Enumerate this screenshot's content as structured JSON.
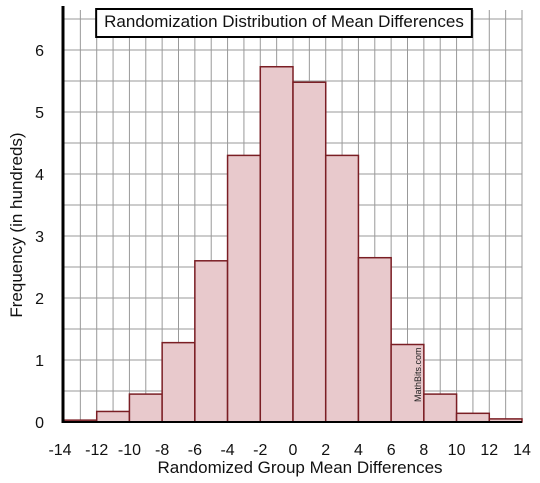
{
  "chart_data": {
    "type": "bar",
    "title": "Randomization Distribution of Mean Differences",
    "xlabel": "Randomized Group Mean Differences",
    "ylabel": "Frequency  (in hundreds)",
    "xlim": [
      -14,
      14
    ],
    "ylim": [
      0,
      6.5
    ],
    "x_ticks": [
      "-14",
      "-12",
      "-10",
      "-8",
      "-6",
      "-4",
      "-2",
      "0",
      "2",
      "4",
      "6",
      "8",
      "10",
      "12",
      "14"
    ],
    "y_ticks": [
      "0",
      "1",
      "2",
      "3",
      "4",
      "5",
      "6"
    ],
    "grid": true,
    "bin_width": 2,
    "bins": [
      {
        "start": -14,
        "end": -12,
        "value": 0.03
      },
      {
        "start": -12,
        "end": -10,
        "value": 0.17
      },
      {
        "start": -10,
        "end": -8,
        "value": 0.45
      },
      {
        "start": -8,
        "end": -6,
        "value": 1.28
      },
      {
        "start": -6,
        "end": -4,
        "value": 2.6
      },
      {
        "start": -4,
        "end": -2,
        "value": 4.3
      },
      {
        "start": -2,
        "end": 0,
        "value": 5.73
      },
      {
        "start": 0,
        "end": 2,
        "value": 5.48
      },
      {
        "start": 2,
        "end": 4,
        "value": 4.3
      },
      {
        "start": 4,
        "end": 6,
        "value": 2.65
      },
      {
        "start": 6,
        "end": 8,
        "value": 1.25
      },
      {
        "start": 8,
        "end": 10,
        "value": 0.45
      },
      {
        "start": 10,
        "end": 12,
        "value": 0.14
      },
      {
        "start": 12,
        "end": 14,
        "value": 0.05
      }
    ],
    "watermark": "MathBits.com",
    "colors": {
      "bar_fill": "#e8c9cc",
      "bar_stroke": "#7a1e24",
      "grid": "#999999",
      "axis": "#000000"
    }
  }
}
